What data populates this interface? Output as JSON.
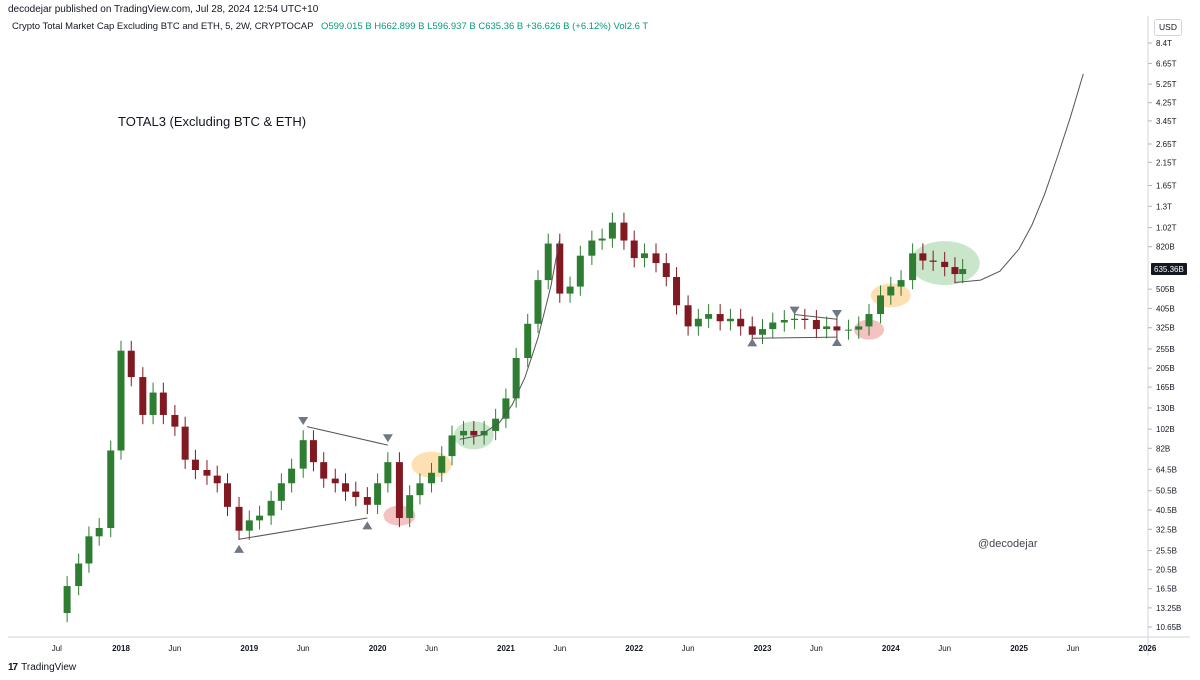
{
  "header": {
    "published": "decodejar published on TradingView.com, Jul 28, 2024 12:54 UTC+10",
    "symbol": "Crypto Total Market Cap Excluding BTC and ETH, 5, 2W, CRYPTOCAP",
    "ohlc": "O599.015 B  H662.899 B  L596.937 B  C635.36 B  +36.626 B (+6.12%)  Vol2.6 T",
    "currency": "USD"
  },
  "footer": {
    "brand": "TradingView"
  },
  "colors": {
    "up": "#2e7d32",
    "down": "#801922",
    "green_zone": "#a5d6a7",
    "orange_zone": "#ffcc80",
    "red_zone": "#ef9a9a",
    "axis_text": "#131722"
  },
  "chart_data": {
    "type": "candlestick",
    "title": "TOTAL3 (Excluding BTC & ETH)",
    "watermark": "@decodejar",
    "y_scale": "log",
    "last_price_label": "635.36B",
    "y_ticks": [
      {
        "label": "8.4T",
        "value": 8400
      },
      {
        "label": "6.65T",
        "value": 6650
      },
      {
        "label": "5.25T",
        "value": 5250
      },
      {
        "label": "4.25T",
        "value": 4250
      },
      {
        "label": "3.45T",
        "value": 3450
      },
      {
        "label": "2.65T",
        "value": 2650
      },
      {
        "label": "2.15T",
        "value": 2150
      },
      {
        "label": "1.65T",
        "value": 1650
      },
      {
        "label": "1.3T",
        "value": 1300
      },
      {
        "label": "1.02T",
        "value": 1020
      },
      {
        "label": "820B",
        "value": 820
      },
      {
        "label": "505B",
        "value": 505
      },
      {
        "label": "405B",
        "value": 405
      },
      {
        "label": "325B",
        "value": 325
      },
      {
        "label": "255B",
        "value": 255
      },
      {
        "label": "205B",
        "value": 205
      },
      {
        "label": "165B",
        "value": 165
      },
      {
        "label": "130B",
        "value": 130
      },
      {
        "label": "102B",
        "value": 102
      },
      {
        "label": "82B",
        "value": 82
      },
      {
        "label": "64.5B",
        "value": 64.5
      },
      {
        "label": "50.5B",
        "value": 50.5
      },
      {
        "label": "40.5B",
        "value": 40.5
      },
      {
        "label": "32.5B",
        "value": 32.5
      },
      {
        "label": "25.5B",
        "value": 25.5
      },
      {
        "label": "20.5B",
        "value": 20.5
      },
      {
        "label": "16.5B",
        "value": 16.5
      },
      {
        "label": "13.25B",
        "value": 13.25
      },
      {
        "label": "10.65B",
        "value": 10.65
      }
    ],
    "x_ticks": [
      {
        "label": "Jul",
        "t": 2017.5
      },
      {
        "label": "2018",
        "t": 2018.0
      },
      {
        "label": "Jun",
        "t": 2018.42
      },
      {
        "label": "2019",
        "t": 2019.0
      },
      {
        "label": "Jun",
        "t": 2019.42
      },
      {
        "label": "2020",
        "t": 2020.0
      },
      {
        "label": "Jun",
        "t": 2020.42
      },
      {
        "label": "2021",
        "t": 2021.0
      },
      {
        "label": "Jun",
        "t": 2021.42
      },
      {
        "label": "2022",
        "t": 2022.0
      },
      {
        "label": "Jun",
        "t": 2022.42
      },
      {
        "label": "2023",
        "t": 2023.0
      },
      {
        "label": "Jun",
        "t": 2023.42
      },
      {
        "label": "2024",
        "t": 2024.0
      },
      {
        "label": "Jun",
        "t": 2024.42
      },
      {
        "label": "2025",
        "t": 2025.0
      },
      {
        "label": "Jun",
        "t": 2025.42
      },
      {
        "label": "2026",
        "t": 2026.0
      }
    ],
    "closes": [
      {
        "t": 2017.5,
        "v": 12.5
      },
      {
        "t": 2017.58,
        "v": 17
      },
      {
        "t": 2017.67,
        "v": 22
      },
      {
        "t": 2017.75,
        "v": 30
      },
      {
        "t": 2017.83,
        "v": 33
      },
      {
        "t": 2017.92,
        "v": 80
      },
      {
        "t": 2018.0,
        "v": 250
      },
      {
        "t": 2018.08,
        "v": 185
      },
      {
        "t": 2018.17,
        "v": 120
      },
      {
        "t": 2018.25,
        "v": 155
      },
      {
        "t": 2018.33,
        "v": 120
      },
      {
        "t": 2018.42,
        "v": 105
      },
      {
        "t": 2018.5,
        "v": 72
      },
      {
        "t": 2018.58,
        "v": 64
      },
      {
        "t": 2018.67,
        "v": 60
      },
      {
        "t": 2018.75,
        "v": 55
      },
      {
        "t": 2018.83,
        "v": 42
      },
      {
        "t": 2018.92,
        "v": 32
      },
      {
        "t": 2019.0,
        "v": 36
      },
      {
        "t": 2019.08,
        "v": 38
      },
      {
        "t": 2019.17,
        "v": 45
      },
      {
        "t": 2019.25,
        "v": 55
      },
      {
        "t": 2019.33,
        "v": 65
      },
      {
        "t": 2019.42,
        "v": 90
      },
      {
        "t": 2019.5,
        "v": 70
      },
      {
        "t": 2019.58,
        "v": 58
      },
      {
        "t": 2019.67,
        "v": 55
      },
      {
        "t": 2019.75,
        "v": 50
      },
      {
        "t": 2019.83,
        "v": 47
      },
      {
        "t": 2019.92,
        "v": 43
      },
      {
        "t": 2020.0,
        "v": 55
      },
      {
        "t": 2020.08,
        "v": 70
      },
      {
        "t": 2020.17,
        "v": 37
      },
      {
        "t": 2020.25,
        "v": 48
      },
      {
        "t": 2020.33,
        "v": 55
      },
      {
        "t": 2020.42,
        "v": 62
      },
      {
        "t": 2020.5,
        "v": 75
      },
      {
        "t": 2020.58,
        "v": 95
      },
      {
        "t": 2020.67,
        "v": 100
      },
      {
        "t": 2020.75,
        "v": 95
      },
      {
        "t": 2020.83,
        "v": 100
      },
      {
        "t": 2020.92,
        "v": 115
      },
      {
        "t": 2021.0,
        "v": 145
      },
      {
        "t": 2021.08,
        "v": 230
      },
      {
        "t": 2021.17,
        "v": 340
      },
      {
        "t": 2021.25,
        "v": 560
      },
      {
        "t": 2021.33,
        "v": 850
      },
      {
        "t": 2021.42,
        "v": 480
      },
      {
        "t": 2021.5,
        "v": 520
      },
      {
        "t": 2021.58,
        "v": 740
      },
      {
        "t": 2021.67,
        "v": 880
      },
      {
        "t": 2021.75,
        "v": 900
      },
      {
        "t": 2021.83,
        "v": 1080
      },
      {
        "t": 2021.92,
        "v": 880
      },
      {
        "t": 2022.0,
        "v": 720
      },
      {
        "t": 2022.08,
        "v": 760
      },
      {
        "t": 2022.17,
        "v": 680
      },
      {
        "t": 2022.25,
        "v": 580
      },
      {
        "t": 2022.33,
        "v": 420
      },
      {
        "t": 2022.42,
        "v": 330
      },
      {
        "t": 2022.5,
        "v": 360
      },
      {
        "t": 2022.58,
        "v": 380
      },
      {
        "t": 2022.67,
        "v": 350
      },
      {
        "t": 2022.75,
        "v": 360
      },
      {
        "t": 2022.83,
        "v": 330
      },
      {
        "t": 2022.92,
        "v": 300
      },
      {
        "t": 2023.0,
        "v": 320
      },
      {
        "t": 2023.08,
        "v": 345
      },
      {
        "t": 2023.17,
        "v": 355
      },
      {
        "t": 2023.25,
        "v": 360
      },
      {
        "t": 2023.33,
        "v": 355
      },
      {
        "t": 2023.42,
        "v": 320
      },
      {
        "t": 2023.5,
        "v": 330
      },
      {
        "t": 2023.58,
        "v": 315
      },
      {
        "t": 2023.67,
        "v": 318
      },
      {
        "t": 2023.75,
        "v": 330
      },
      {
        "t": 2023.83,
        "v": 380
      },
      {
        "t": 2023.92,
        "v": 470
      },
      {
        "t": 2024.0,
        "v": 520
      },
      {
        "t": 2024.08,
        "v": 560
      },
      {
        "t": 2024.17,
        "v": 760
      },
      {
        "t": 2024.25,
        "v": 700
      },
      {
        "t": 2024.33,
        "v": 690
      },
      {
        "t": 2024.42,
        "v": 650
      },
      {
        "t": 2024.5,
        "v": 600
      },
      {
        "t": 2024.56,
        "v": 635.36
      }
    ],
    "projection_curve": [
      {
        "t": 2024.5,
        "v": 545
      },
      {
        "t": 2024.7,
        "v": 560
      },
      {
        "t": 2024.85,
        "v": 620
      },
      {
        "t": 2025.0,
        "v": 800
      },
      {
        "t": 2025.1,
        "v": 1050
      },
      {
        "t": 2025.2,
        "v": 1500
      },
      {
        "t": 2025.3,
        "v": 2300
      },
      {
        "t": 2025.4,
        "v": 3600
      },
      {
        "t": 2025.5,
        "v": 5900
      }
    ],
    "growth_curve_2020_2021": [
      {
        "t": 2020.64,
        "v": 91
      },
      {
        "t": 2020.8,
        "v": 95
      },
      {
        "t": 2020.95,
        "v": 110
      },
      {
        "t": 2021.05,
        "v": 135
      },
      {
        "t": 2021.15,
        "v": 185
      },
      {
        "t": 2021.25,
        "v": 290
      },
      {
        "t": 2021.35,
        "v": 520
      },
      {
        "t": 2021.42,
        "v": 900
      }
    ],
    "trendlines": [
      [
        {
          "t": 2018.92,
          "v": 29
        },
        {
          "t": 2019.92,
          "v": 37
        }
      ],
      [
        {
          "t": 2019.45,
          "v": 105
        },
        {
          "t": 2020.08,
          "v": 85
        }
      ],
      [
        {
          "t": 2022.92,
          "v": 288
        },
        {
          "t": 2023.58,
          "v": 292
        }
      ],
      [
        {
          "t": 2023.25,
          "v": 378
        },
        {
          "t": 2023.58,
          "v": 358
        }
      ]
    ],
    "markers": [
      {
        "dir": "up",
        "t": 2018.92,
        "v": 26
      },
      {
        "dir": "down",
        "t": 2019.42,
        "v": 112
      },
      {
        "dir": "down",
        "t": 2020.08,
        "v": 92
      },
      {
        "dir": "up",
        "t": 2019.92,
        "v": 34
      },
      {
        "dir": "down",
        "t": 2023.25,
        "v": 395
      },
      {
        "dir": "down",
        "t": 2023.58,
        "v": 380
      },
      {
        "dir": "up",
        "t": 2022.92,
        "v": 275
      },
      {
        "dir": "up",
        "t": 2023.58,
        "v": 276
      }
    ],
    "zones": [
      {
        "color": "red",
        "t": 2020.17,
        "v": 38,
        "rx": 16,
        "ry": 10
      },
      {
        "color": "orange",
        "t": 2020.42,
        "v": 68,
        "rx": 20,
        "ry": 13
      },
      {
        "color": "green",
        "t": 2020.75,
        "v": 95,
        "rx": 20,
        "ry": 14
      },
      {
        "color": "red",
        "t": 2023.83,
        "v": 318,
        "rx": 15,
        "ry": 10
      },
      {
        "color": "orange",
        "t": 2024.0,
        "v": 470,
        "rx": 20,
        "ry": 12
      },
      {
        "color": "green",
        "t": 2024.42,
        "v": 680,
        "rx": 35,
        "ry": 22
      }
    ]
  }
}
